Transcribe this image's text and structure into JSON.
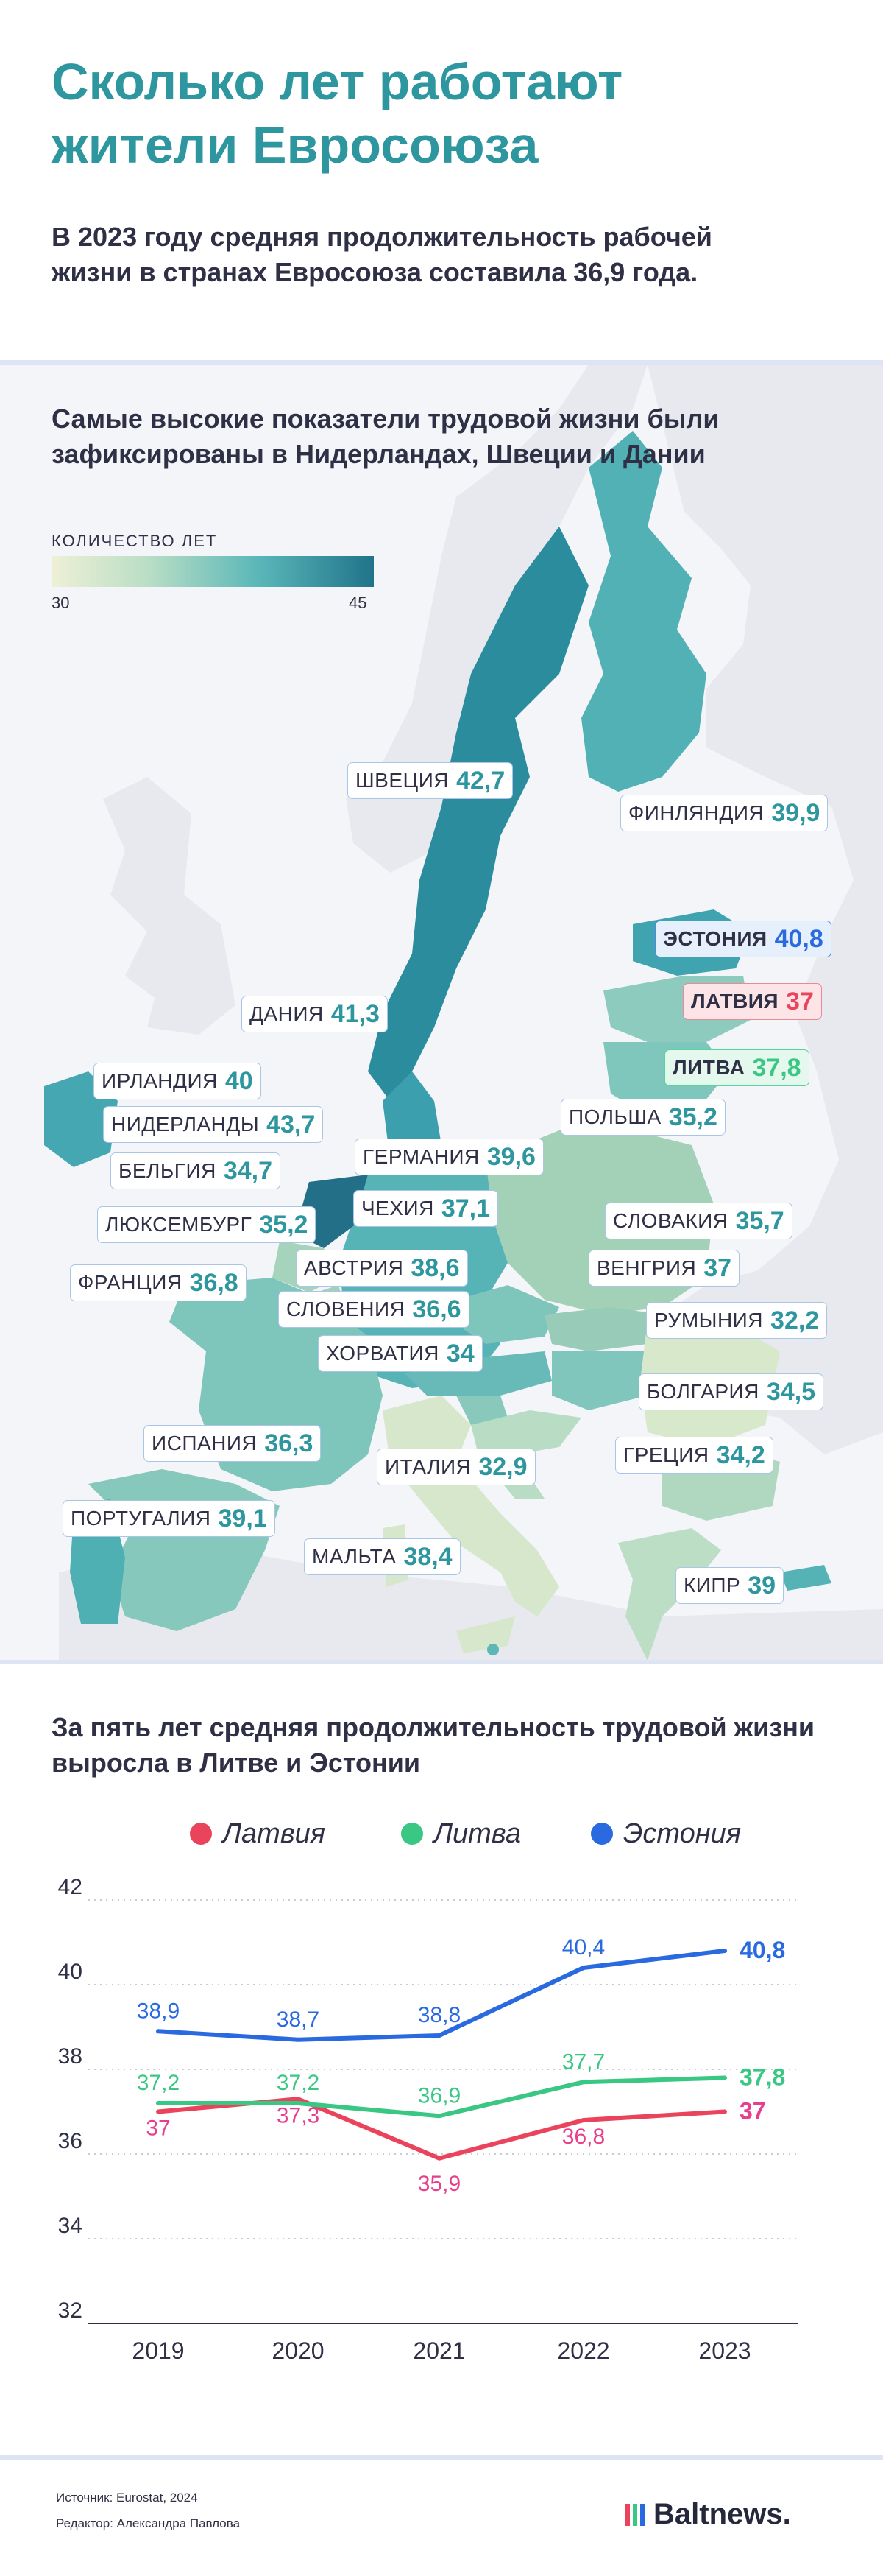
{
  "title": "Сколько лет работают жители Евросоюза",
  "intro": "В 2023 году средняя продолжительность рабочей жизни в странах Евросоюза составила 36,9 года.",
  "map": {
    "heading": "Самые высокие показатели трудовой жизни были зафиксированы в Нидерландах, Швеции и Дании",
    "legend_caption": "КОЛИЧЕСТВО ЛЕТ",
    "legend_min": "30",
    "legend_max": "45",
    "colors": [
      "#eef0d6",
      "#b9dec5",
      "#58b6b8",
      "#217389"
    ],
    "countries": [
      {
        "name": "ШВЕЦИЯ",
        "value": "42,7"
      },
      {
        "name": "ФИНЛЯНДИЯ",
        "value": "39,9"
      },
      {
        "name": "ЭСТОНИЯ",
        "value": "40,8"
      },
      {
        "name": "ЛАТВИЯ",
        "value": "37"
      },
      {
        "name": "ДАНИЯ",
        "value": "41,3"
      },
      {
        "name": "ЛИТВА",
        "value": "37,8"
      },
      {
        "name": "ИРЛАНДИЯ",
        "value": "40"
      },
      {
        "name": "ПОЛЬША",
        "value": "35,2"
      },
      {
        "name": "НИДЕРЛАНДЫ",
        "value": "43,7"
      },
      {
        "name": "ГЕРМАНИЯ",
        "value": "39,6"
      },
      {
        "name": "БЕЛЬГИЯ",
        "value": "34,7"
      },
      {
        "name": "ЧЕХИЯ",
        "value": "37,1"
      },
      {
        "name": "СЛОВАКИЯ",
        "value": "35,7"
      },
      {
        "name": "ЛЮКСЕМБУРГ",
        "value": "35,2"
      },
      {
        "name": "АВСТРИЯ",
        "value": "38,6"
      },
      {
        "name": "ВЕНГРИЯ",
        "value": "37"
      },
      {
        "name": "ФРАНЦИЯ",
        "value": "36,8"
      },
      {
        "name": "СЛОВЕНИЯ",
        "value": "36,6"
      },
      {
        "name": "РУМЫНИЯ",
        "value": "32,2"
      },
      {
        "name": "ХОРВАТИЯ",
        "value": "34"
      },
      {
        "name": "БОЛГАРИЯ",
        "value": "34,5"
      },
      {
        "name": "ИСПАНИЯ",
        "value": "36,3"
      },
      {
        "name": "ГРЕЦИЯ",
        "value": "34,2"
      },
      {
        "name": "ИТАЛИЯ",
        "value": "32,9"
      },
      {
        "name": "ПОРТУГАЛИЯ",
        "value": "39,1"
      },
      {
        "name": "МАЛЬТА",
        "value": "38,4"
      },
      {
        "name": "КИПР",
        "value": "39"
      }
    ]
  },
  "chart_data": {
    "type": "line",
    "title": "За пять лет средняя продолжительность трудовой жизни выросла в Литве и Эстонии",
    "categories": [
      "2019",
      "2020",
      "2021",
      "2022",
      "2023"
    ],
    "ylim": [
      32,
      42
    ],
    "yticks": [
      "32",
      "34",
      "36",
      "38",
      "40",
      "42"
    ],
    "grid": true,
    "legend_position": "top",
    "series": [
      {
        "name": "Латвия",
        "color": "#e9445c",
        "label_color": "#e83e8c",
        "values": [
          37,
          37.3,
          35.9,
          36.8,
          37
        ],
        "labels": [
          "37",
          "37,3",
          "35,9",
          "36,8",
          "37"
        ]
      },
      {
        "name": "Литва",
        "color": "#3ac784",
        "label_color": "#3ac784",
        "values": [
          37.2,
          37.2,
          36.9,
          37.7,
          37.8
        ],
        "labels": [
          "37,2",
          "37,2",
          "36,9",
          "37,7",
          "37,8"
        ]
      },
      {
        "name": "Эстония",
        "color": "#2a6ae0",
        "label_color": "#2a6ae0",
        "values": [
          38.9,
          38.7,
          38.8,
          40.4,
          40.8
        ],
        "labels": [
          "38,9",
          "38,7",
          "38,8",
          "40,4",
          "40,8"
        ]
      }
    ]
  },
  "footer": {
    "source": "Источник: Eurostat, 2024",
    "editor": "Редактор: Александра Павлова",
    "logo": "Baltnews."
  }
}
